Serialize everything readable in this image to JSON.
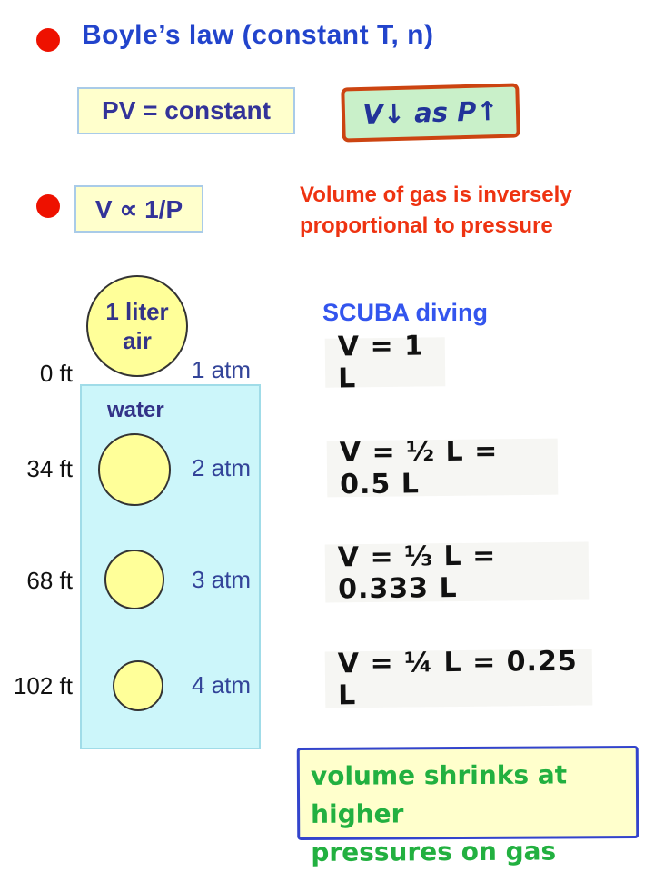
{
  "title": {
    "text": "Boyle’s law (constant T, n)"
  },
  "formula_box": {
    "text": "PV = constant"
  },
  "annotation_box": {
    "text": "V↓ as P↑"
  },
  "proportion_box": {
    "text": "V ∝ 1/P"
  },
  "description": {
    "line1": "Volume of gas is inversely",
    "line2": "proportional to pressure"
  },
  "diagram": {
    "air_bubble": {
      "line1": "1 liter",
      "line2": "air"
    },
    "water_label": "water",
    "depths": [
      {
        "depth": "0 ft",
        "pressure": "1 atm"
      },
      {
        "depth": "34 ft",
        "pressure": "2 atm"
      },
      {
        "depth": "68 ft",
        "pressure": "3 atm"
      },
      {
        "depth": "102 ft",
        "pressure": "4 atm"
      }
    ]
  },
  "scuba": {
    "heading": "SCUBA diving",
    "equations": [
      "V = 1 L",
      "V = ½ L = 0.5 L",
      "V = ⅓ L = 0.333 L",
      "V = ¼ L = 0.25 L"
    ]
  },
  "note": {
    "line1": "volume shrinks at higher",
    "line2": "pressures on gas"
  },
  "colors": {
    "bullet_red": "#ee1100",
    "title_blue": "#2244cc",
    "formula_text_navy": "#333399",
    "yellow_box_bg": "#ffffcc",
    "yellow_box_border": "#a9cbe8",
    "green_box_bg": "#c9f0c9",
    "green_box_border": "#cc4411",
    "description_red": "#ee3311",
    "scuba_blue": "#3355ee",
    "bubble_yellow": "#ffff99",
    "water_cyan": "#ccf6fa",
    "note_border_blue": "#3344cc",
    "note_text_green": "#22b040"
  }
}
